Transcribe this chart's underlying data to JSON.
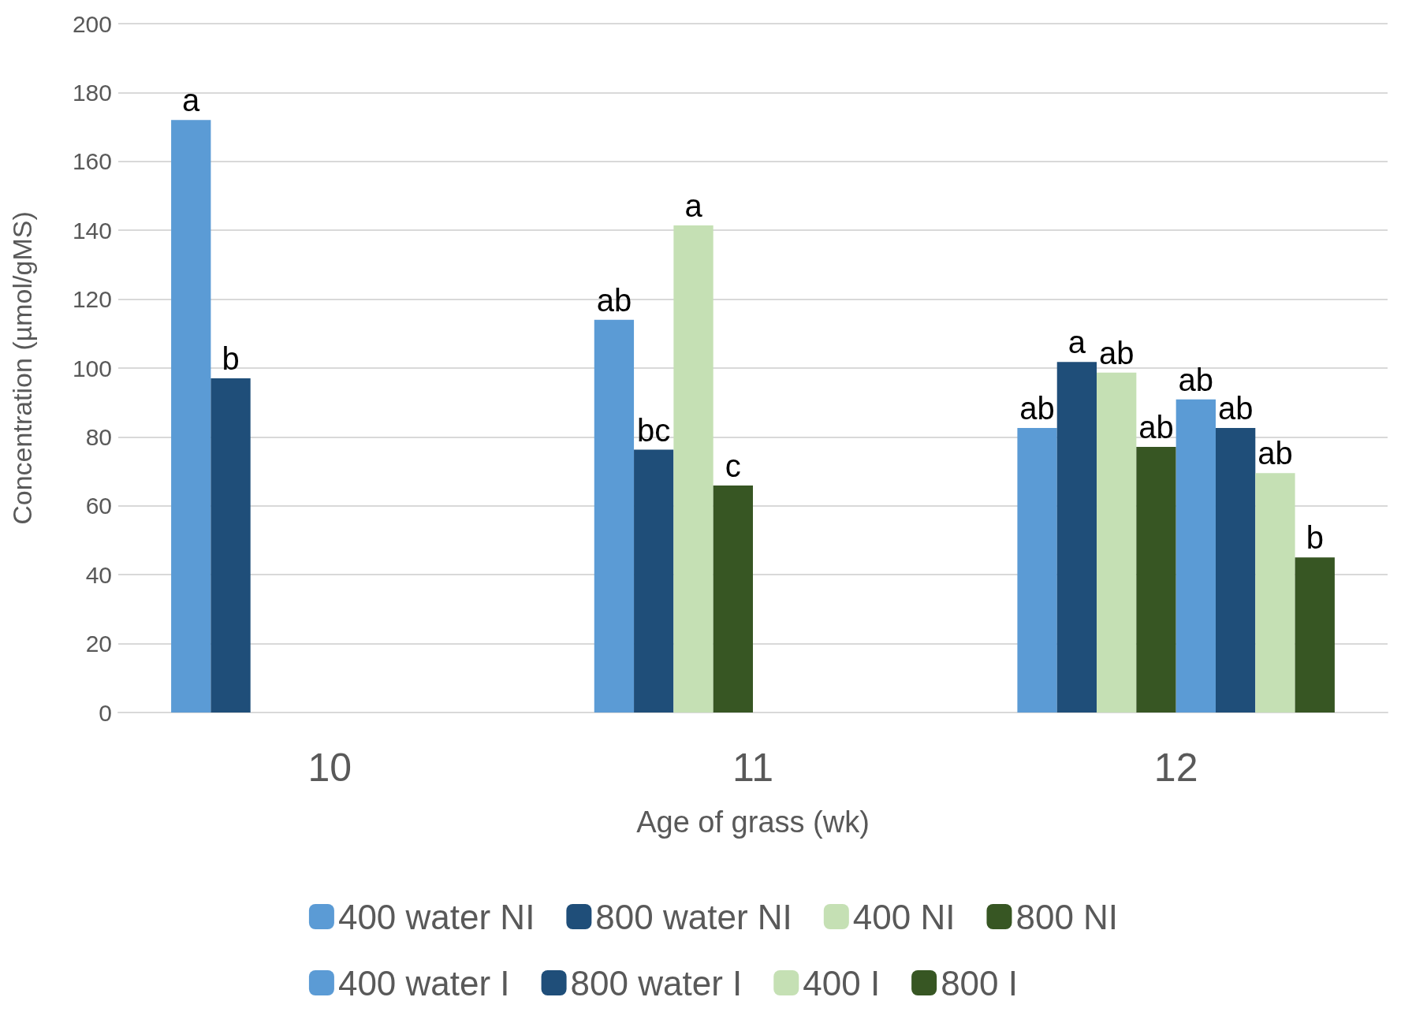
{
  "chart_data": {
    "type": "bar",
    "xlabel": "Age of grass (wk)",
    "ylabel": "Concentration (µmol/gMS)",
    "categories": [
      "10",
      "11",
      "12"
    ],
    "series": [
      {
        "name": "400 water NI",
        "color": "#5b9bd5",
        "values": [
          172,
          114,
          82.6
        ],
        "value_labels": [
          "a",
          "ab",
          "ab"
        ]
      },
      {
        "name": "800 water NI",
        "color": "#1f4e79",
        "values": [
          97,
          76.3,
          101.8
        ],
        "value_labels": [
          "b",
          "bc",
          "a"
        ]
      },
      {
        "name": "400 NI",
        "color": "#c5e0b4",
        "values": [
          null,
          141.4,
          98.7
        ],
        "value_labels": [
          null,
          "a",
          "ab"
        ]
      },
      {
        "name": "800 NI",
        "color": "#375623",
        "values": [
          null,
          65.9,
          77.1
        ],
        "value_labels": [
          null,
          "c",
          "ab"
        ]
      },
      {
        "name": "400 water I",
        "color": "#5b9bd5",
        "values": [
          null,
          null,
          90.9
        ],
        "value_labels": [
          null,
          null,
          "ab"
        ]
      },
      {
        "name": "800 water I",
        "color": "#1f4e79",
        "values": [
          null,
          null,
          82.6
        ],
        "value_labels": [
          null,
          null,
          "ab"
        ]
      },
      {
        "name": "400 I",
        "color": "#c5e0b4",
        "values": [
          null,
          null,
          69.5
        ],
        "value_labels": [
          null,
          null,
          "ab"
        ]
      },
      {
        "name": "800 I",
        "color": "#375623",
        "values": [
          null,
          null,
          45
        ],
        "value_labels": [
          null,
          null,
          "b"
        ]
      }
    ],
    "ylim": [
      0,
      200
    ],
    "yticks": [
      0,
      20,
      40,
      60,
      80,
      100,
      120,
      140,
      160,
      180,
      200
    ],
    "grid": "y",
    "legend": "bottom"
  }
}
